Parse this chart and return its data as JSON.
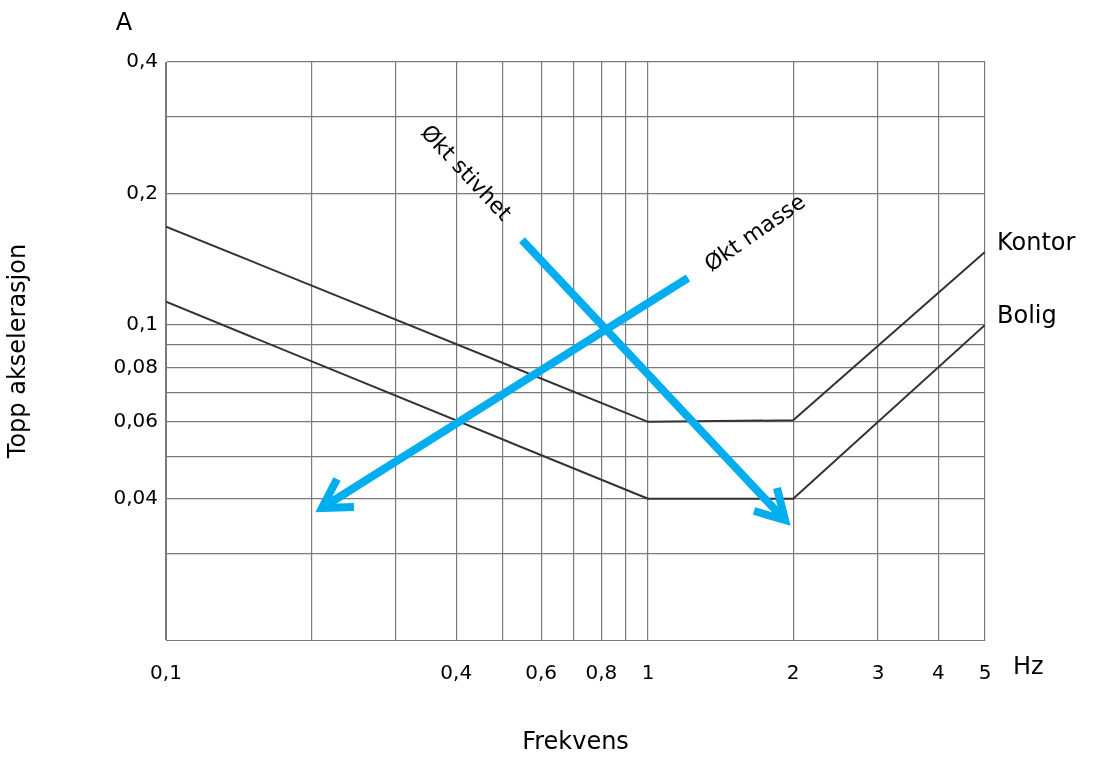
{
  "chart_data": {
    "type": "line",
    "xlabel": "Frekvens",
    "ylabel": "Topp akselerasjon",
    "annotations": [
      "A",
      "Hz",
      "Økt stivhet",
      "Økt masse"
    ],
    "log": "xy",
    "grid": true,
    "legend": false,
    "marker": "none",
    "line_style": "solid",
    "xlim": [
      0.1,
      5
    ],
    "ylim": [
      0.019,
      0.4
    ],
    "xticks": [
      {
        "value": 0.1,
        "label": "0,1"
      },
      {
        "value": 0.2,
        "label": null
      },
      {
        "value": 0.3,
        "label": null
      },
      {
        "value": 0.4,
        "label": "0,4"
      },
      {
        "value": 0.5,
        "label": null
      },
      {
        "value": 0.6,
        "label": "0,6"
      },
      {
        "value": 0.7,
        "label": null
      },
      {
        "value": 0.8,
        "label": "0,8"
      },
      {
        "value": 0.9,
        "label": null
      },
      1,
      2,
      3,
      4,
      5
    ],
    "yticks": [
      {
        "value": 0.03,
        "label": null
      },
      {
        "value": 0.04,
        "label": "0,04"
      },
      {
        "value": 0.05,
        "label": null
      },
      {
        "value": 0.06,
        "label": "0,06"
      },
      {
        "value": 0.07,
        "label": null
      },
      {
        "value": 0.08,
        "label": "0,08"
      },
      {
        "value": 0.09,
        "label": null
      },
      {
        "value": 0.1,
        "label": "0,1"
      },
      {
        "value": 0.2,
        "label": "0,2"
      },
      {
        "value": 0.3,
        "label": null
      },
      {
        "value": 0.4,
        "label": "0,4"
      }
    ],
    "series": [
      {
        "name": "Kontor",
        "color": "#333333",
        "x": [
          0.1,
          1,
          2,
          5
        ],
        "values": [
          0.168,
          0.06,
          0.0605,
          0.147
        ]
      },
      {
        "name": "Bolig",
        "color": "#333333",
        "x": [
          0.1,
          1,
          2,
          5
        ],
        "values": [
          0.113,
          0.04,
          0.04,
          0.1
        ]
      }
    ]
  }
}
